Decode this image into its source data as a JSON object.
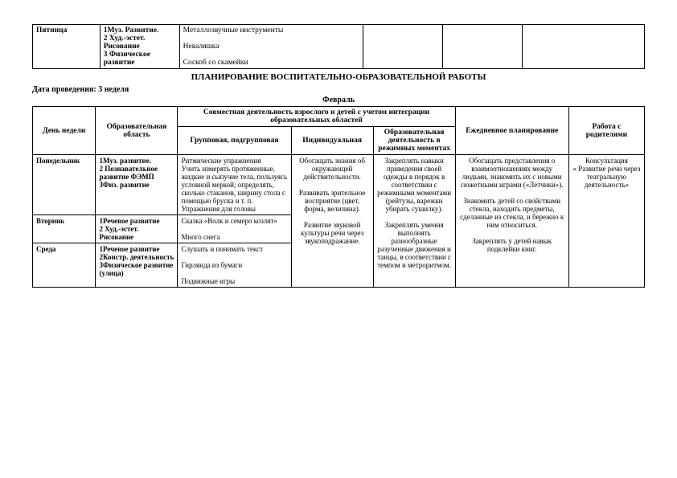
{
  "topTable": {
    "day": "Пятница",
    "areas": "1Муз. Развитие.\n2 Худ.-эстет. Рисование\n3 Физическое развитие",
    "group": "Металлозвучные инструменты\n\nНеваляшка\n\nСоскоб со скамейки"
  },
  "title": "ПЛАНИРОВАНИЕ ВОСПИТАТЕЛЬНО-ОБРАЗОВАТЕЛЬНОЙ РАБОТЫ",
  "dateLine": "Дата проведения: 3 неделя",
  "month": "Февраль",
  "headers": {
    "day": "День недели",
    "area": "Образовательная область",
    "joint": "Совместная деятельность взрослого и детей с учетом интеграции образовательных областей",
    "group": "Групповая, подгрупповая",
    "indiv": "Индивидуальная",
    "reg": "Образовательная деятельность в режимных моментах",
    "daily": "Ежедневное планирование",
    "parents": "Работа с родителями"
  },
  "rows": [
    {
      "day": "Понедельник",
      "area": "1Муз. развитие.\n2 Познавательное развитие ФЭМП\n3Физ. развитие",
      "group": "Ритмические упражнения\nУчить измерять протяженные, жидкие и сыпучие тела, пользуясь условной меркой; определять, сколько стаканов, ширину стола с помощью бруска и т. п.\nУпражнения для головы"
    },
    {
      "day": "Вторник",
      "area": "1Речевое развитие\n2 Худ.-эстет. Рисование",
      "group": "Сказка «Волк и семеро козлят»\n\nМного снега"
    },
    {
      "day": "Среда",
      "area": "1Речевое развитие\n2Констр. деятельность\n3Физическое развитие (улица)",
      "group": "Слушать и понимать текст\n\nГирлянда из бумаги\n\nПодвижные игры"
    }
  ],
  "indiv": "Обогащать знания об окружающей действительности.\n\nРазвивать зрительное восприятие (цвет, форма, величина).\n\nРазвитие звуковой культуры речи через звукоподражание.",
  "reg": "Закреплять навыки приведения своей одежды в порядок в соответствии с режимными моментами (рейтузы, варежки убирать сушилку).\n\nЗакреплять умения выполнять разнообразные разученные движения и танцы, в соответствии с темпом и метроритмом.",
  "daily": "Обогащать представления о взаимоотношениях между людьми, знакомить их с новыми сюжетными играми («Летчики»).\n\nЗнакомить детей со свойствами стекла, находить предметы, сделанные из стекла, и бережно к ним относиться.\n\nЗакреплять у детей навык подклейки книг.",
  "parents": "Консультация\n« Развитие речи через театральную деятельность»"
}
